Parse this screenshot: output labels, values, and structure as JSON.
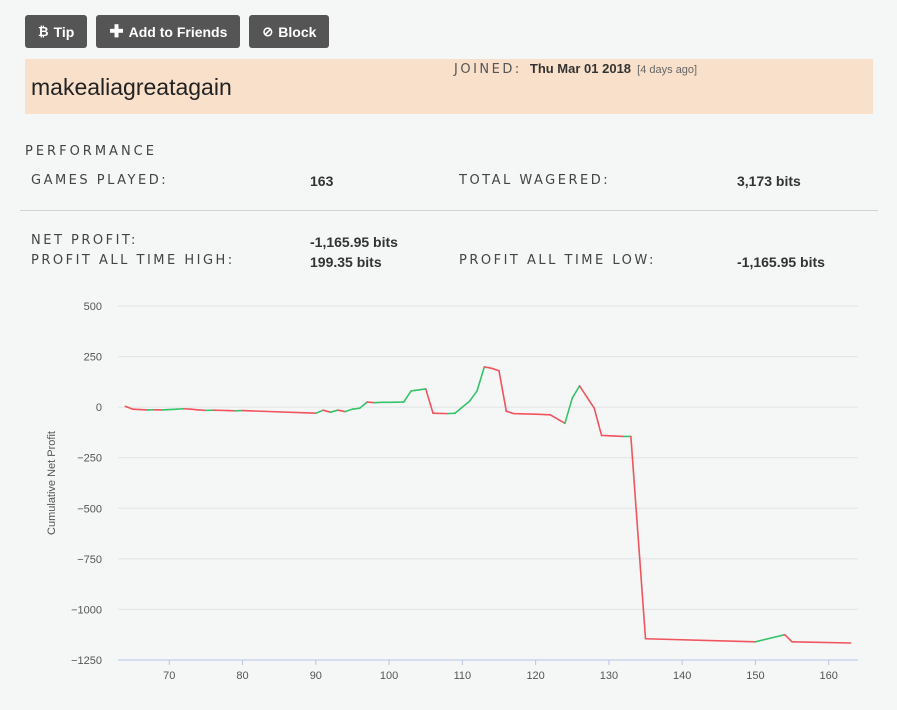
{
  "toolbar": {
    "tip_label": "Tip",
    "add_friends_label": "Add to Friends",
    "block_label": "Block"
  },
  "profile": {
    "username": "makealiagreatagain",
    "joined_label": "JOINED:",
    "joined_date": "Thu Mar 01 2018",
    "joined_ago": "[4 days ago]",
    "background_color": "#f9e0cb"
  },
  "performance": {
    "title": "PERFORMANCE",
    "games_played_label": "GAMES PLAYED:",
    "games_played": "163",
    "total_wagered_label": "TOTAL WAGERED:",
    "total_wagered": "3,173 bits",
    "net_profit_label": "NET PROFIT:",
    "net_profit": "-1,165.95 bits",
    "profit_high_label": "PROFIT ALL TIME HIGH:",
    "profit_high": "199.35 bits",
    "profit_low_label": "PROFIT ALL TIME LOW:",
    "profit_low": "-1,165.95 bits"
  },
  "chart_data": {
    "type": "line",
    "title": "",
    "xlabel": "",
    "ylabel": "Cumulative Net Profit",
    "xlim": [
      63,
      164
    ],
    "ylim": [
      -1250,
      500
    ],
    "xticks": [
      70,
      80,
      90,
      100,
      110,
      120,
      130,
      140,
      150,
      160
    ],
    "yticks": [
      500,
      250,
      0,
      -250,
      -500,
      -750,
      -1000,
      -1250
    ],
    "ytick_labels": [
      "500",
      "250",
      "0",
      "−250",
      "−500",
      "−750",
      "−1000",
      "−1250"
    ],
    "grid": true,
    "up_color": "#35c46a",
    "down_color": "#f0545d",
    "x": [
      64,
      65,
      66,
      67,
      68,
      69,
      70,
      71,
      72,
      73,
      74,
      75,
      76,
      77,
      78,
      79,
      80,
      90,
      91,
      92,
      93,
      94,
      95,
      96,
      97,
      98,
      99,
      100,
      102,
      103,
      104,
      105,
      106,
      108,
      109,
      110,
      111,
      112,
      113,
      114,
      115,
      116,
      117,
      118,
      120,
      122,
      124,
      125,
      126,
      127,
      128,
      129,
      132,
      133,
      135,
      150,
      154,
      155,
      163
    ],
    "y": [
      4,
      -10,
      -12,
      -14,
      -13,
      -14,
      -12,
      -10,
      -8,
      -10,
      -14,
      -16,
      -15,
      -16,
      -17,
      -18,
      -17,
      -30,
      -15,
      -25,
      -15,
      -22,
      -10,
      -5,
      25,
      22,
      24,
      24,
      25,
      80,
      85,
      90,
      -30,
      -32,
      -30,
      0,
      30,
      80,
      199,
      192,
      180,
      -20,
      -32,
      -33,
      -35,
      -38,
      -80,
      45,
      105,
      50,
      -5,
      -140,
      -145,
      -145,
      -1145,
      -1160,
      -1125,
      -1160,
      -1166
    ]
  }
}
